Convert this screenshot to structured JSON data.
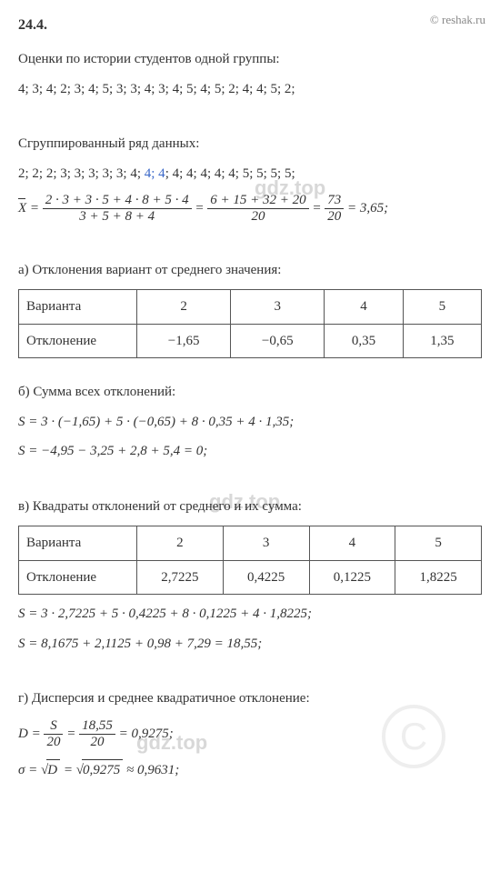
{
  "copyright": "© reshak.ru",
  "exercise_num": "24.4.",
  "intro": "Оценки по истории студентов одной группы:",
  "grades": "4; 3; 4; 2; 3; 4; 5; 3; 3; 4; 3; 4; 5; 4; 5; 2; 4; 4; 5; 2;",
  "grouped_label": "Сгруппированный ряд данных:",
  "grouped_pre": "2; 2; 2; 3; 3; 3; 3; 3; 4; ",
  "grouped_blue": "4; 4",
  "grouped_post": "; 4; 4; 4; 4; 4; 5; 5; 5; 5;",
  "xbar_num": "2 · 3 + 3 · 5 + 4 · 8 + 5 · 4",
  "xbar_den": "3 + 5 + 8 + 4",
  "xbar_num2": "6 + 15 + 32 + 20",
  "xbar_den2": "20",
  "xbar_num3": "73",
  "xbar_den3": "20",
  "xbar_result": " = 3,65;",
  "part_a": "а) Отклонения вариант от среднего значения:",
  "table_a": {
    "h1": "Варианта",
    "h2": "Отклонение",
    "r1": [
      "2",
      "3",
      "4",
      "5"
    ],
    "r2": [
      "−1,65",
      "−0,65",
      "0,35",
      "1,35"
    ]
  },
  "part_b": "б) Сумма всех отклонений:",
  "s1": "S = 3 · (−1,65) + 5 · (−0,65) + 8 · 0,35 + 4 · 1,35;",
  "s2": "S = −4,95 − 3,25 + 2,8 + 5,4 = 0;",
  "part_c": "в) Квадраты отклонений от среднего и их сумма:",
  "table_c": {
    "h1": "Варианта",
    "h2": "Отклонение",
    "r1": [
      "2",
      "3",
      "4",
      "5"
    ],
    "r2": [
      "2,7225",
      "0,4225",
      "0,1225",
      "1,8225"
    ]
  },
  "s3": "S = 3 · 2,7225 + 5 · 0,4225 + 8 · 0,1225 + 4 · 1,8225;",
  "s4": "S = 8,1675 + 2,1125 + 0,98 + 7,29 = 18,55;",
  "part_d": "г) Дисперсия и среднее квадратичное отклонение:",
  "d_num1": "S",
  "d_den1": "20",
  "d_num2": "18,55",
  "d_den2": "20",
  "d_result": " = 0,9275;",
  "sigma_val": "0,9275",
  "sigma_result": " ≈ 0,9631;",
  "wm": "gdz.top"
}
